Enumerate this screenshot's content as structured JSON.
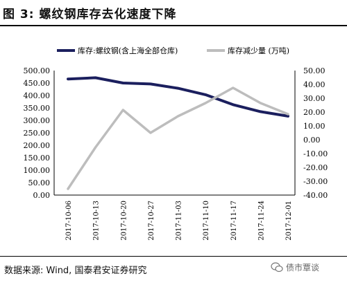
{
  "header": {
    "title": "图 3: 螺纹钢库存去化速度下降"
  },
  "footer": {
    "source": "数据来源: Wind, 国泰君安证券研究",
    "watermark": "债市覃谈"
  },
  "chart_data": {
    "type": "line",
    "categories": [
      "2017-10-06",
      "2017-10-13",
      "2017-10-20",
      "2017-10-27",
      "2017-11-03",
      "2017-11-10",
      "2017-11-17",
      "2017-11-24",
      "2017-12-01"
    ],
    "series": [
      {
        "name": "库存:螺纹钢(含上海全部仓库)",
        "axis": "left",
        "color": "#1b1f5e",
        "values": [
          466,
          471,
          450,
          446,
          429,
          403,
          363,
          335,
          317
        ]
      },
      {
        "name": "库存减少量 (万吨)",
        "axis": "right",
        "color": "#bdbdbd",
        "values": [
          -35.5,
          -5.5,
          21.5,
          5,
          17,
          26.5,
          37.5,
          26.5,
          18.5
        ]
      }
    ],
    "ylim_left": [
      0,
      500
    ],
    "ylim_right": [
      -40,
      50
    ],
    "yticks_left": [
      "500.00",
      "450.00",
      "400.00",
      "350.00",
      "300.00",
      "250.00",
      "200.00",
      "150.00",
      "100.00",
      "50.00",
      "0.00"
    ],
    "yticks_right": [
      "50.00",
      "40.00",
      "30.00",
      "20.00",
      "10.00",
      "0.00",
      "-10.00",
      "-20.00",
      "-30.00",
      "-40.00"
    ],
    "legend": "top",
    "grid": false
  }
}
